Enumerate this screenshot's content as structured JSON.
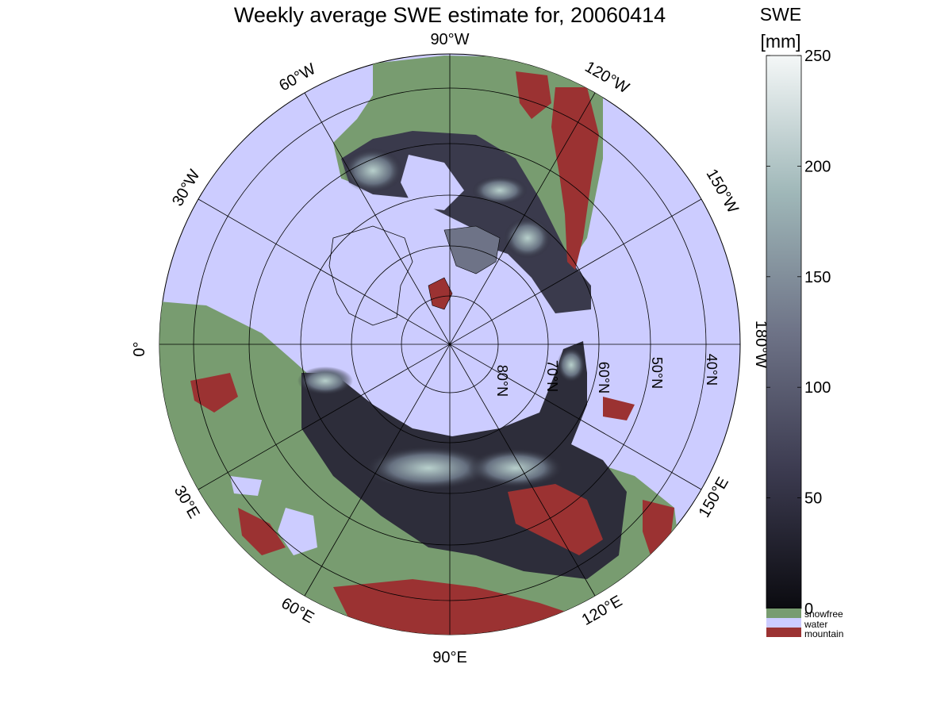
{
  "title": "Weekly average SWE estimate for, 20060414",
  "map": {
    "projection": "north polar stereographic",
    "lon_labels": [
      "90°W",
      "60°W",
      "30°W",
      "0°",
      "30°E",
      "60°E",
      "90°E",
      "120°E",
      "150°E",
      "180°W",
      "150°W",
      "120°W"
    ],
    "lat_labels": [
      "80°N",
      "70°N",
      "60°N",
      "50°N",
      "40°N"
    ],
    "colors": {
      "water": "#ccccff",
      "snowfree": "#789c70",
      "mountain": "#9b3232",
      "snow_low": "#0b0b10",
      "snow_high": "#f4f7f7"
    }
  },
  "colorbar": {
    "title_line1": "SWE",
    "title_line2": "[mm]",
    "ticks": [
      "0",
      "50",
      "100",
      "150",
      "200",
      "250"
    ],
    "range": [
      0,
      250
    ],
    "categories": [
      "snowfree",
      "water",
      "mountain"
    ]
  }
}
